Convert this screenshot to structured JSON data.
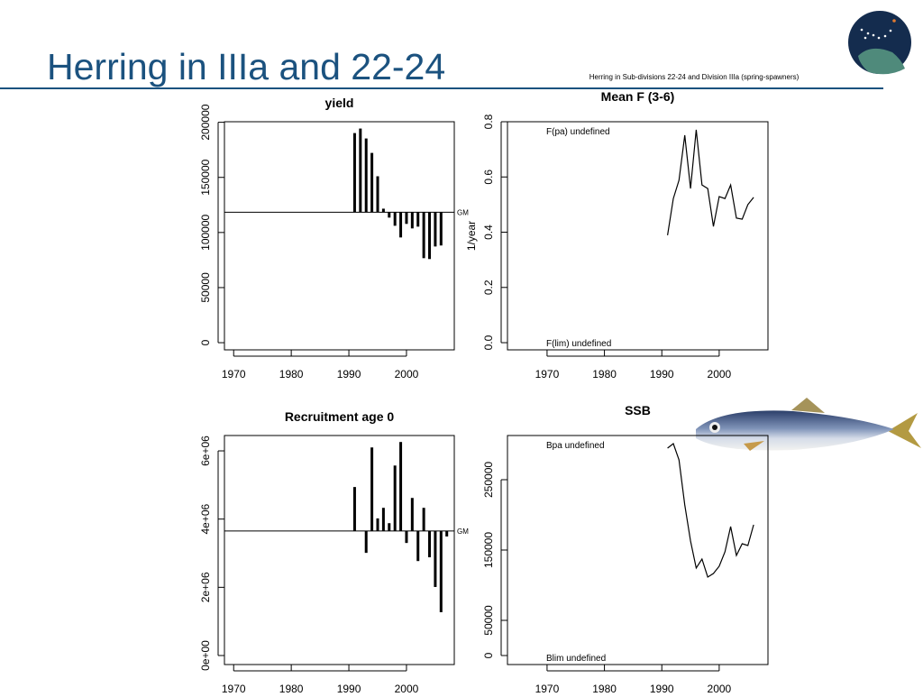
{
  "title": "Herring in IIIa and 22-24",
  "subtitle": "Herring in Sub-divisions 22-24 and Division IIIa (spring-spawners)",
  "chart_data": [
    {
      "type": "bar",
      "title": "yield",
      "color": "#000000",
      "x": [
        1991,
        1992,
        1993,
        1994,
        1995,
        1996,
        1997,
        1998,
        1999,
        2000,
        2001,
        2002,
        2003,
        2004,
        2005,
        2006
      ],
      "values": [
        190200,
        194300,
        185300,
        172200,
        151000,
        121600,
        113500,
        106100,
        95500,
        107800,
        103700,
        105300,
        76700,
        75900,
        87300,
        88200
      ],
      "reference": {
        "value": 118400,
        "label": "GM"
      },
      "xlim": [
        1968.4,
        2008.3
      ],
      "xticks": [
        1970,
        1980,
        1990,
        2000
      ],
      "ylim": [
        -6500,
        200500
      ],
      "yticks": [
        0,
        50000,
        100000,
        150000,
        200000
      ]
    },
    {
      "type": "line",
      "title": "Mean F (3-6)",
      "ylabel": "1/year",
      "color": "#000000",
      "x": [
        1991,
        1992,
        1993,
        1994,
        1995,
        1996,
        1997,
        1998,
        1999,
        2000,
        2001,
        2002,
        2003,
        2004,
        2005,
        2006
      ],
      "values": [
        0.389,
        0.522,
        0.588,
        0.751,
        0.558,
        0.771,
        0.571,
        0.558,
        0.421,
        0.529,
        0.522,
        0.571,
        0.451,
        0.447,
        0.5,
        0.526
      ],
      "annotations": [
        "F(pa) undefined",
        "F(lim) undefined"
      ],
      "xlim": [
        1963.1,
        2008.5
      ],
      "xticks": [
        1970,
        1980,
        1990,
        2000
      ],
      "ylim": [
        -0.026,
        0.8
      ],
      "yticks": [
        {
          "value": 0,
          "label": "0.0"
        },
        0.2,
        0.4,
        0.6,
        0.8
      ]
    },
    {
      "type": "bar",
      "title": "Recruitment age 0",
      "color": "#000000",
      "x": [
        1991,
        1993,
        1994,
        1995,
        1996,
        1997,
        1998,
        1999,
        2000,
        2001,
        2002,
        2003,
        2004,
        2005,
        2006,
        2007
      ],
      "values": [
        4940000,
        3010000,
        6100000,
        4020000,
        4330000,
        3880000,
        5570000,
        6260000,
        3300000,
        4620000,
        2770000,
        4330000,
        2880000,
        2010000,
        1270000,
        3490000
      ],
      "reference": {
        "value": 3650000,
        "label": "GM"
      },
      "xlim": [
        1968.4,
        2008.3
      ],
      "xticks": [
        1970,
        1980,
        1990,
        2000
      ],
      "ylim": [
        -264000,
        6450000
      ],
      "yticks": [
        {
          "value": 0,
          "label": "0e+00"
        },
        {
          "value": 2000000,
          "label": "2e+06"
        },
        {
          "value": 4000000,
          "label": "4e+06"
        },
        {
          "value": 6000000,
          "label": "6e+06"
        }
      ]
    },
    {
      "type": "line",
      "title": "SSB",
      "color": "#000000",
      "x": [
        1991,
        1992,
        1993,
        1994,
        1995,
        1996,
        1997,
        1998,
        1999,
        2000,
        2001,
        2002,
        2003,
        2004,
        2005,
        2006
      ],
      "values": [
        294900,
        301300,
        278200,
        214100,
        162800,
        124400,
        137200,
        111500,
        116700,
        126900,
        147400,
        183300,
        142300,
        159000,
        156400,
        185900
      ],
      "annotations": [
        "Bpa undefined",
        "Blim undefined"
      ],
      "xlim": [
        1963.1,
        2008.5
      ],
      "xticks": [
        1970,
        1980,
        1990,
        2000
      ],
      "ylim": [
        -12800,
        312800
      ],
      "yticks": [
        0,
        50000,
        150000,
        250000
      ]
    }
  ]
}
